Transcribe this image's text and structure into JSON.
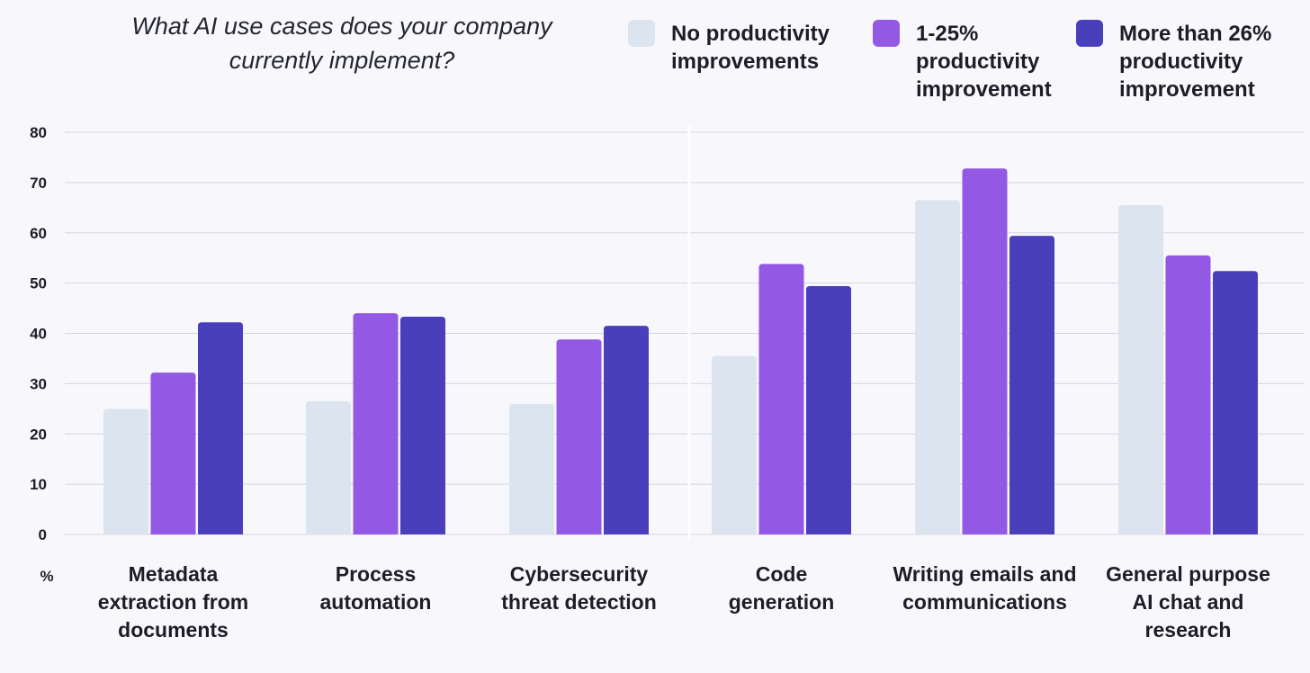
{
  "chart_data": {
    "type": "bar",
    "title": "What AI use cases does your company currently implement?",
    "categories": [
      "Metadata extraction from documents",
      "Process automation",
      "Cybersecurity threat detection",
      "Code generation",
      "Writing emails and communications",
      "General purpose AI chat and research"
    ],
    "category_lines": [
      [
        "Metadata",
        "extraction from",
        "documents"
      ],
      [
        "Process",
        "automation"
      ],
      [
        "Cybersecurity",
        "threat detection"
      ],
      [
        "Code",
        "generation"
      ],
      [
        "Writing emails and",
        "communications"
      ],
      [
        "General purpose",
        "AI chat and",
        "research"
      ]
    ],
    "series": [
      {
        "name": "No productivity improvements",
        "color": "#dce5ef",
        "values": [
          25,
          26.5,
          26,
          35.5,
          66.5,
          65.5
        ]
      },
      {
        "name": "1-25% productivity improvement",
        "color": "#9358e4",
        "values": [
          32.2,
          44,
          38.8,
          53.8,
          72.8,
          55.5
        ]
      },
      {
        "name": "More than 26% productivity improvement",
        "color": "#4a3fbb",
        "values": [
          42.2,
          43.3,
          41.5,
          49.4,
          59.4,
          52.4
        ]
      }
    ],
    "legend_labels": [
      "No productivity\nimprovements",
      "1-25%\nproductivity\nimprovement",
      "More than 26%\nproductivity\nimprovement"
    ],
    "legend_position": "top-right",
    "ylim": [
      0,
      80
    ],
    "yticks": [
      0,
      10,
      20,
      30,
      40,
      50,
      60,
      70,
      80
    ],
    "ylabel": "%",
    "grid": true
  }
}
